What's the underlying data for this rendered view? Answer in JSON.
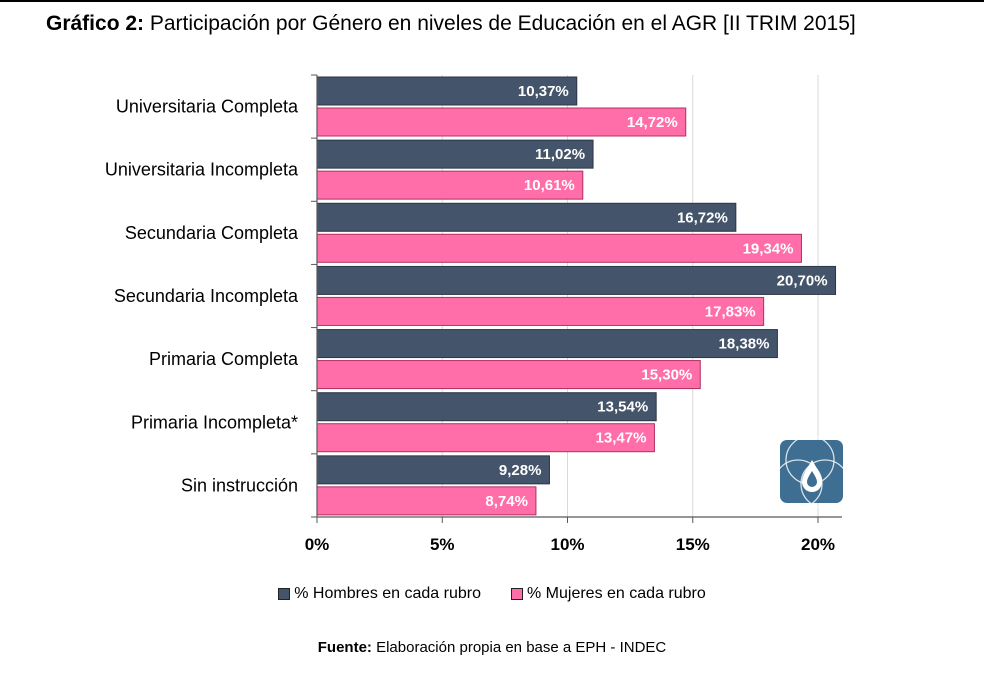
{
  "title": {
    "prefix": "Gráfico 2:",
    "text": "Participación por Género en niveles de Educación en el AGR [II TRIM 2015]"
  },
  "source": {
    "prefix": "Fuente:",
    "text": "Elaboración propia en base a EPH - INDEC"
  },
  "colors": {
    "hombres": "#44546A",
    "mujeres": "#FF6EA8",
    "logo": "#3E6E92"
  },
  "logo": {
    "icon": "drop-in-circles-logo"
  },
  "chart_data": {
    "type": "bar",
    "orientation": "horizontal",
    "categories": [
      "Universitaria Completa",
      "Universitaria Incompleta",
      "Secundaria Completa",
      "Secundaria Incompleta",
      "Primaria Completa",
      "Primaria Incompleta*",
      "Sin instrucción"
    ],
    "series": [
      {
        "name": "% Hombres en cada rubro",
        "values": [
          10.37,
          11.02,
          16.72,
          20.7,
          18.38,
          13.54,
          9.28
        ],
        "labels": [
          "10,37%",
          "11,02%",
          "16,72%",
          "20,70%",
          "18,38%",
          "13,54%",
          "9,28%"
        ]
      },
      {
        "name": "% Mujeres en cada rubro",
        "values": [
          14.72,
          10.61,
          19.34,
          17.83,
          15.3,
          13.47,
          8.74
        ],
        "labels": [
          "14,72%",
          "10,61%",
          "19,34%",
          "17,83%",
          "15,30%",
          "13,47%",
          "8,74%"
        ]
      }
    ],
    "xlim": [
      0,
      20
    ],
    "xticks": [
      0,
      5,
      10,
      15,
      20
    ],
    "xtick_labels": [
      "0%",
      "5%",
      "10%",
      "15%",
      "20%"
    ],
    "grid": "vertical",
    "legend_position": "bottom"
  }
}
